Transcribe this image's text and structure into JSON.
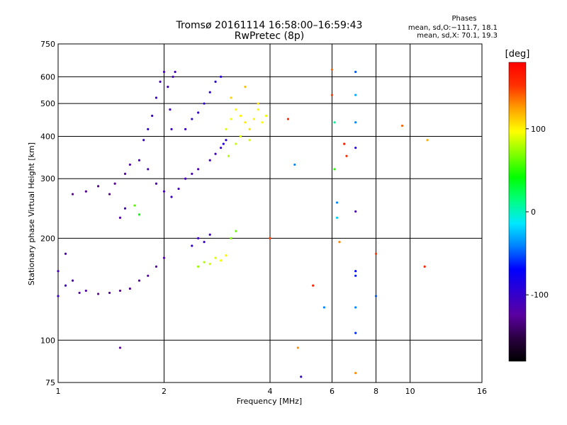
{
  "chart_data": {
    "type": "scatter",
    "title": "Tromsø 20161114 16:58:00–16:59:43",
    "subtitle": "RwPretec (8p)",
    "xlabel": "Frequency [MHz]",
    "ylabel": "Stationary phase Virtual Height [km]",
    "x_scale": "log",
    "y_scale": "log",
    "xlim": [
      1,
      16
    ],
    "ylim": [
      75,
      750
    ],
    "x_ticks": [
      1,
      2,
      4,
      6,
      8,
      10,
      16
    ],
    "y_ticks": [
      75,
      100,
      200,
      300,
      400,
      500,
      600,
      750
    ],
    "grid": true,
    "stats": {
      "heading": "Phases",
      "o_line": "mean, sd,O:−111.7, 18.1",
      "x_line": "mean, sd,X:  70.1, 19.3"
    },
    "colorbar": {
      "label": "[deg]",
      "range": [
        -180,
        180
      ],
      "ticks": [
        100,
        0,
        -100
      ],
      "colormap": [
        "#000000",
        "#2a0040",
        "#5a00a0",
        "#3000d0",
        "#0000ff",
        "#0080ff",
        "#00e8ff",
        "#00ff80",
        "#00ff00",
        "#80ff00",
        "#ffff00",
        "#ffa000",
        "#ff3000",
        "#ff0000"
      ]
    },
    "series": [
      {
        "color_by": "phase_deg",
        "points": [
          [
            1.0,
            135,
            -105
          ],
          [
            1.05,
            145,
            -108
          ],
          [
            1.1,
            150,
            -112
          ],
          [
            1.15,
            138,
            -120
          ],
          [
            1.2,
            140,
            -118
          ],
          [
            1.3,
            137,
            -125
          ],
          [
            1.4,
            138,
            -128
          ],
          [
            1.5,
            140,
            -130
          ],
          [
            1.6,
            142,
            -128
          ],
          [
            1.7,
            150,
            -125
          ],
          [
            1.8,
            155,
            -122
          ],
          [
            1.9,
            165,
            -120
          ],
          [
            2.0,
            175,
            -118
          ],
          [
            1.0,
            160,
            -110
          ],
          [
            1.05,
            180,
            -115
          ],
          [
            1.1,
            270,
            -125
          ],
          [
            1.2,
            275,
            -128
          ],
          [
            1.3,
            285,
            -130
          ],
          [
            1.45,
            290,
            -125
          ],
          [
            1.55,
            310,
            -120
          ],
          [
            1.6,
            330,
            -115
          ],
          [
            1.7,
            340,
            -110
          ],
          [
            1.8,
            320,
            -112
          ],
          [
            1.9,
            290,
            -115
          ],
          [
            2.0,
            275,
            -110
          ],
          [
            2.1,
            265,
            -105
          ],
          [
            2.2,
            280,
            -108
          ],
          [
            2.3,
            300,
            -110
          ],
          [
            2.4,
            310,
            -112
          ],
          [
            2.5,
            320,
            -114
          ],
          [
            2.7,
            340,
            -110
          ],
          [
            2.8,
            355,
            -108
          ],
          [
            2.9,
            370,
            -100
          ],
          [
            3.0,
            390,
            -95
          ],
          [
            1.75,
            390,
            -100
          ],
          [
            1.8,
            420,
            -98
          ],
          [
            1.85,
            460,
            -100
          ],
          [
            1.9,
            520,
            -105
          ],
          [
            1.95,
            580,
            -110
          ],
          [
            2.0,
            620,
            -112
          ],
          [
            2.05,
            560,
            -110
          ],
          [
            2.08,
            480,
            -108
          ],
          [
            2.1,
            420,
            -105
          ],
          [
            2.12,
            600,
            -110
          ],
          [
            2.15,
            620,
            -112
          ],
          [
            2.3,
            420,
            -105
          ],
          [
            2.4,
            450,
            -102
          ],
          [
            2.5,
            470,
            -100
          ],
          [
            2.6,
            500,
            -98
          ],
          [
            2.7,
            540,
            -96
          ],
          [
            2.8,
            580,
            -95
          ],
          [
            2.9,
            600,
            -92
          ],
          [
            2.95,
            380,
            -90
          ],
          [
            3.0,
            420,
            90
          ],
          [
            3.1,
            450,
            95
          ],
          [
            3.2,
            480,
            98
          ],
          [
            3.3,
            460,
            100
          ],
          [
            3.4,
            440,
            102
          ],
          [
            3.5,
            420,
            105
          ],
          [
            3.6,
            450,
            100
          ],
          [
            3.7,
            480,
            98
          ],
          [
            3.8,
            440,
            96
          ],
          [
            3.9,
            460,
            94
          ],
          [
            3.05,
            350,
            80
          ],
          [
            3.2,
            380,
            85
          ],
          [
            3.3,
            400,
            90
          ],
          [
            3.5,
            390,
            88
          ],
          [
            3.1,
            520,
            110
          ],
          [
            3.4,
            560,
            115
          ],
          [
            3.7,
            500,
            105
          ],
          [
            2.4,
            190,
            -100
          ],
          [
            2.5,
            200,
            -102
          ],
          [
            2.6,
            195,
            -105
          ],
          [
            2.7,
            205,
            -108
          ],
          [
            2.5,
            165,
            75
          ],
          [
            2.6,
            170,
            80
          ],
          [
            2.7,
            168,
            85
          ],
          [
            2.8,
            175,
            90
          ],
          [
            2.9,
            172,
            95
          ],
          [
            3.0,
            178,
            100
          ],
          [
            3.1,
            200,
            70
          ],
          [
            3.2,
            210,
            65
          ],
          [
            1.4,
            270,
            -130
          ],
          [
            1.5,
            230,
            -120
          ],
          [
            1.55,
            245,
            -110
          ],
          [
            1.65,
            250,
            60
          ],
          [
            1.7,
            235,
            40
          ],
          [
            1.5,
            95,
            -125
          ],
          [
            4.0,
            200,
            150
          ],
          [
            4.5,
            450,
            160
          ],
          [
            4.7,
            330,
            -40
          ],
          [
            4.8,
            95,
            130
          ],
          [
            4.9,
            78,
            -100
          ],
          [
            5.3,
            145,
            160
          ],
          [
            5.7,
            125,
            -40
          ],
          [
            6.0,
            630,
            140
          ],
          [
            6.0,
            530,
            150
          ],
          [
            6.1,
            440,
            10
          ],
          [
            6.1,
            320,
            50
          ],
          [
            6.2,
            255,
            -40
          ],
          [
            6.2,
            230,
            -20
          ],
          [
            6.3,
            195,
            130
          ],
          [
            6.5,
            380,
            165
          ],
          [
            6.6,
            350,
            155
          ],
          [
            7.0,
            620,
            -50
          ],
          [
            7.0,
            530,
            -30
          ],
          [
            7.0,
            440,
            -40
          ],
          [
            7.0,
            370,
            -90
          ],
          [
            7.0,
            240,
            -110
          ],
          [
            7.0,
            160,
            -70
          ],
          [
            7.0,
            155,
            -65
          ],
          [
            7.0,
            125,
            -40
          ],
          [
            7.0,
            105,
            -60
          ],
          [
            7.0,
            80,
            130
          ],
          [
            8.0,
            180,
            150
          ],
          [
            8.0,
            135,
            -50
          ],
          [
            9.5,
            430,
            140
          ],
          [
            11.2,
            390,
            120
          ],
          [
            11.0,
            165,
            160
          ]
        ]
      }
    ]
  }
}
